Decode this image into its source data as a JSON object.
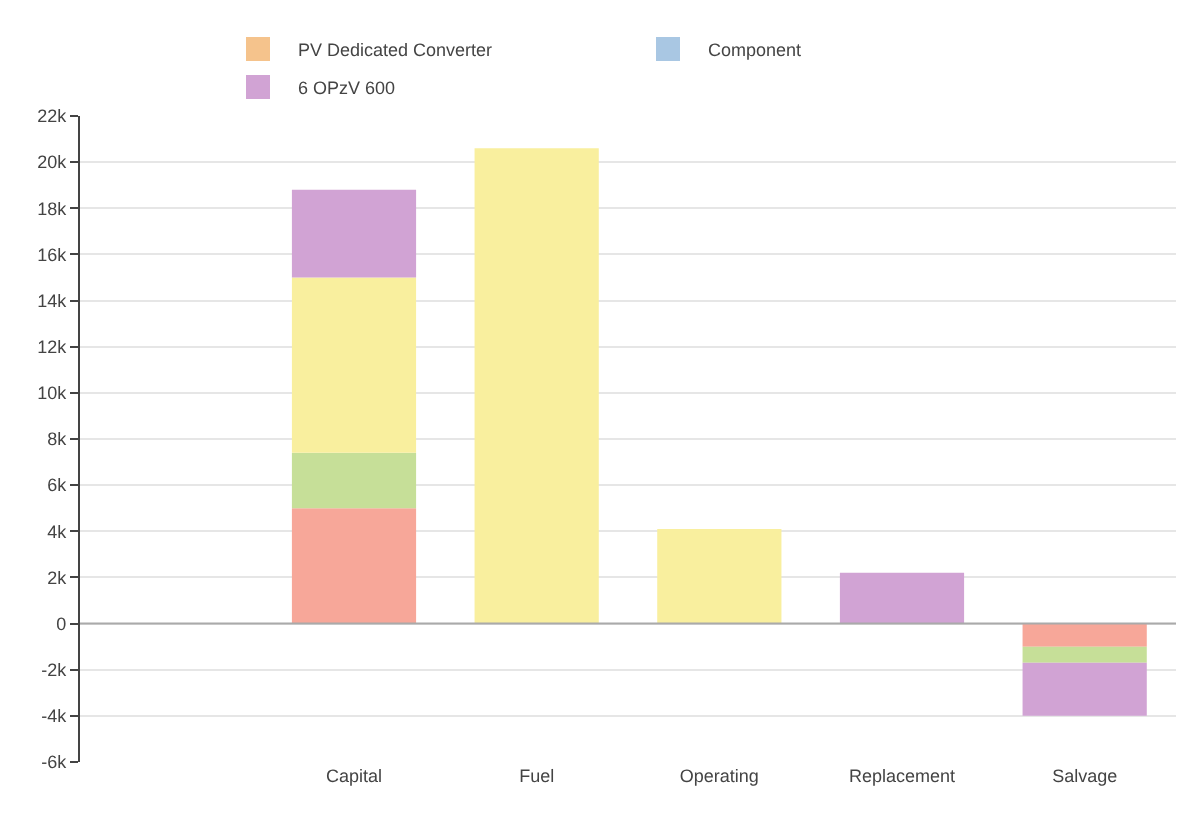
{
  "chart_data": {
    "type": "bar",
    "stacked": true,
    "categories": [
      null,
      "Capital",
      "Fuel",
      "Operating",
      "Replacement",
      "Salvage"
    ],
    "series": [
      {
        "name": "PV Dedicated Converter",
        "color": "#f5c38c",
        "values": [
          null,
          null,
          null,
          null,
          null,
          null
        ]
      },
      {
        "name": "Component",
        "color": "#a9c7e3",
        "values": [
          null,
          null,
          null,
          null,
          null,
          null
        ]
      },
      {
        "color": "#f7a799",
        "values": [
          null,
          5000,
          null,
          null,
          null,
          -1000
        ]
      },
      {
        "color": "#c6df98",
        "values": [
          null,
          2400,
          null,
          null,
          null,
          -700
        ]
      },
      {
        "color": "#f9ef9e",
        "values": [
          null,
          7600,
          20600,
          4100,
          null,
          null
        ]
      },
      {
        "name": "6 OPzV 600",
        "color": "#d1a3d4",
        "values": [
          null,
          3800,
          null,
          null,
          2200,
          -2300
        ]
      }
    ],
    "ylim": [
      -6000,
      22000
    ],
    "yticks": [
      {
        "value": -6000,
        "label": "-6k"
      },
      {
        "value": -4000,
        "label": "-4k"
      },
      {
        "value": -2000,
        "label": "-2k"
      },
      0,
      {
        "value": 2000,
        "label": "2k"
      },
      {
        "value": 4000,
        "label": "4k"
      },
      {
        "value": 6000,
        "label": "6k"
      },
      {
        "value": 8000,
        "label": "8k"
      },
      {
        "value": 10000,
        "label": "10k"
      },
      {
        "value": 12000,
        "label": "12k"
      },
      {
        "value": 14000,
        "label": "14k"
      },
      {
        "value": 16000,
        "label": "16k"
      },
      {
        "value": 18000,
        "label": "18k"
      },
      {
        "value": 20000,
        "label": "20k"
      },
      {
        "value": 22000,
        "label": "22k"
      }
    ],
    "grid": "y",
    "legend": "top"
  }
}
